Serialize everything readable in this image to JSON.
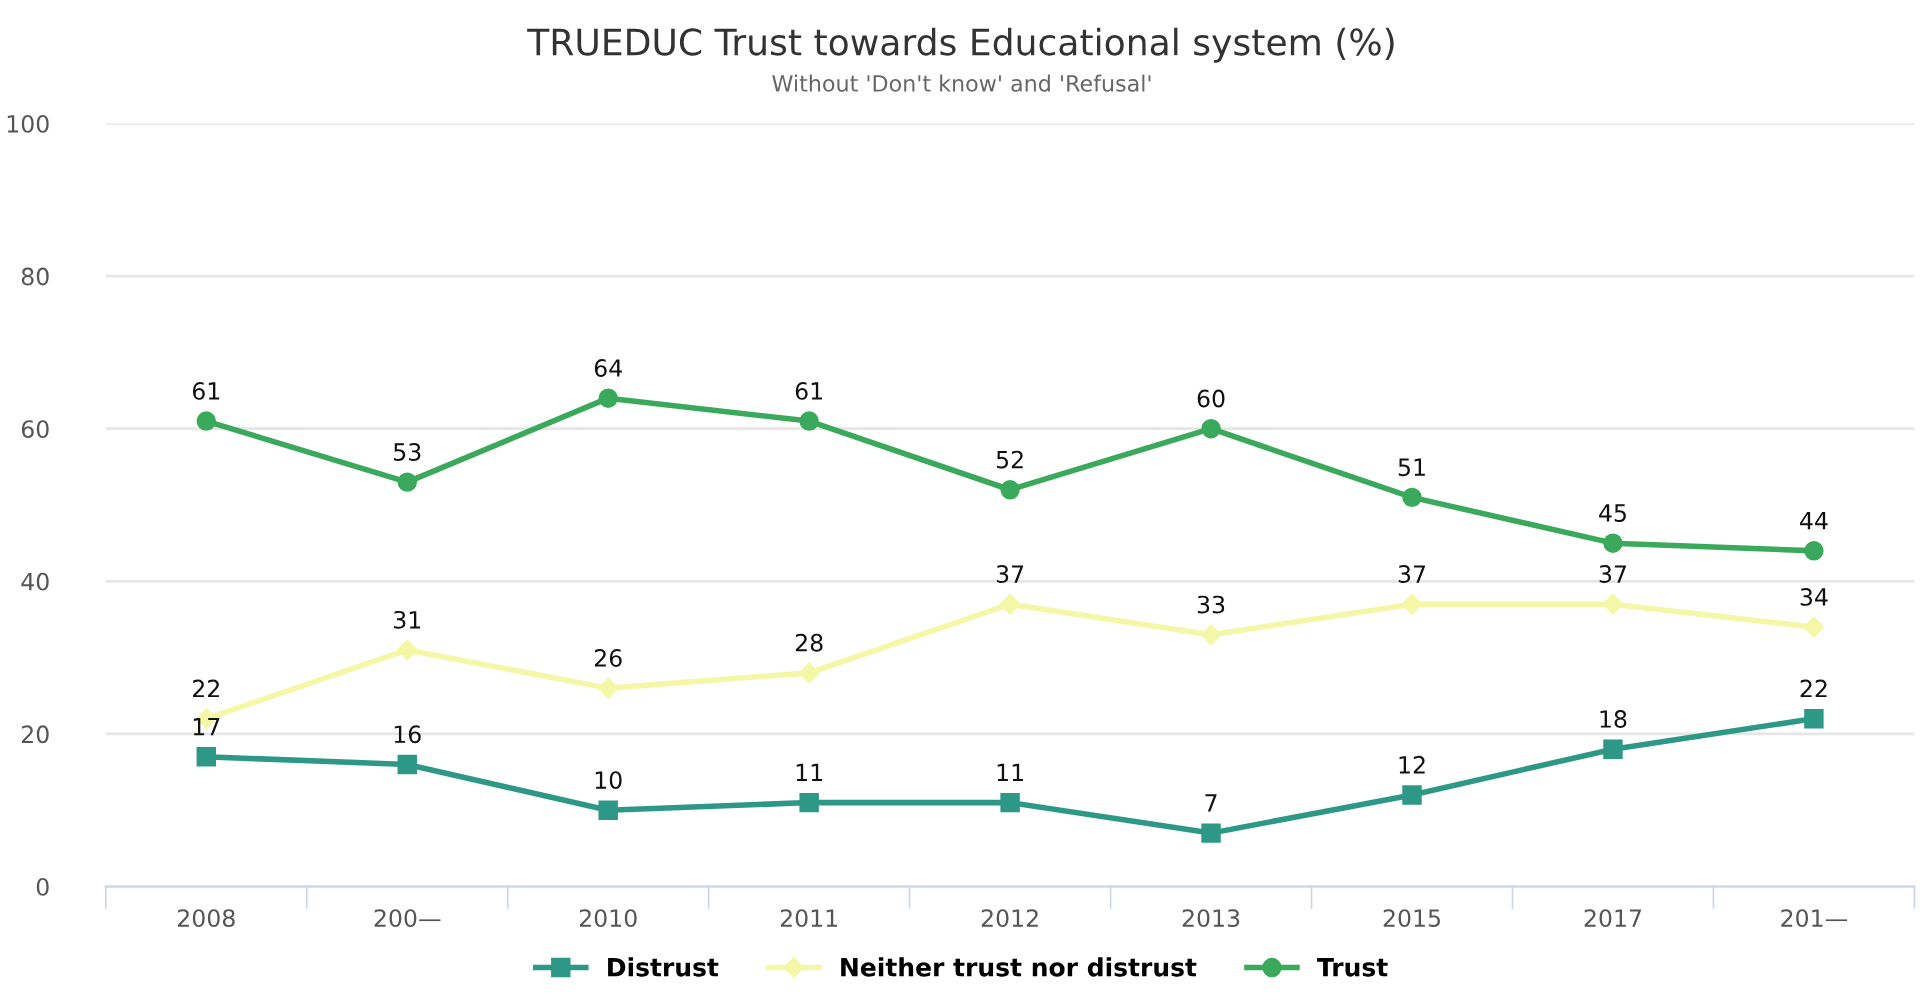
{
  "chart_data": {
    "type": "line",
    "title": "TRUEDUC Trust towards Educational system (%)",
    "subtitle": "Without 'Don't know' and 'Refusal'",
    "categories": [
      "2008",
      "200—",
      "2010",
      "2011",
      "2012",
      "2013",
      "2015",
      "2017",
      "201—"
    ],
    "series": [
      {
        "name": "Distrust",
        "color": "#2e9886",
        "marker": "square",
        "values": [
          17,
          16,
          10,
          11,
          11,
          7,
          12,
          18,
          22
        ]
      },
      {
        "name": "Neither trust nor distrust",
        "color": "#f4f7a6",
        "marker": "diamond",
        "values": [
          22,
          31,
          26,
          28,
          37,
          33,
          37,
          37,
          34
        ]
      },
      {
        "name": "Trust",
        "color": "#3aa95b",
        "marker": "circle",
        "values": [
          61,
          53,
          64,
          61,
          52,
          60,
          51,
          45,
          44
        ]
      }
    ],
    "ylim": [
      0,
      100
    ],
    "yticks": [
      0,
      20,
      40,
      60,
      80,
      100
    ],
    "grid": "y",
    "legend": "bottom",
    "data_labels": true,
    "line_style": "solid"
  }
}
